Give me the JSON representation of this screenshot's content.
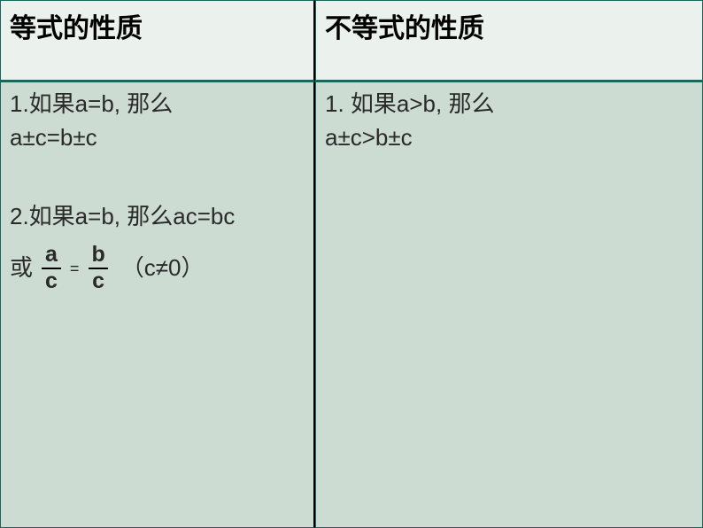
{
  "table": {
    "colors": {
      "header_bg": "#ebf1ec",
      "body_bg": "#cddcd3",
      "border_color": "#1a665e",
      "divider_color": "#000000",
      "text_color": "#2a2a2a",
      "header_text_color": "#000000"
    },
    "header": {
      "left": "等式的性质",
      "right": "不等式的性质",
      "fontsize": 30
    },
    "left": {
      "item1_line1": "1.如果a=b, 那么",
      "item1_line2": "a±c=b±c",
      "item2_line1": "2.如果a=b, 那么ac=bc",
      "frac_prefix": "或",
      "frac1_num": "a",
      "frac1_den": "c",
      "eq_sign": "=",
      "frac2_num": "b",
      "frac2_den": "c",
      "frac_cond": "（c≠0）",
      "fontsize": 26
    },
    "right": {
      "item1_line1": "1. 如果a>b, 那么",
      "item1_line2": "a±c>b±c",
      "fontsize": 26
    }
  }
}
